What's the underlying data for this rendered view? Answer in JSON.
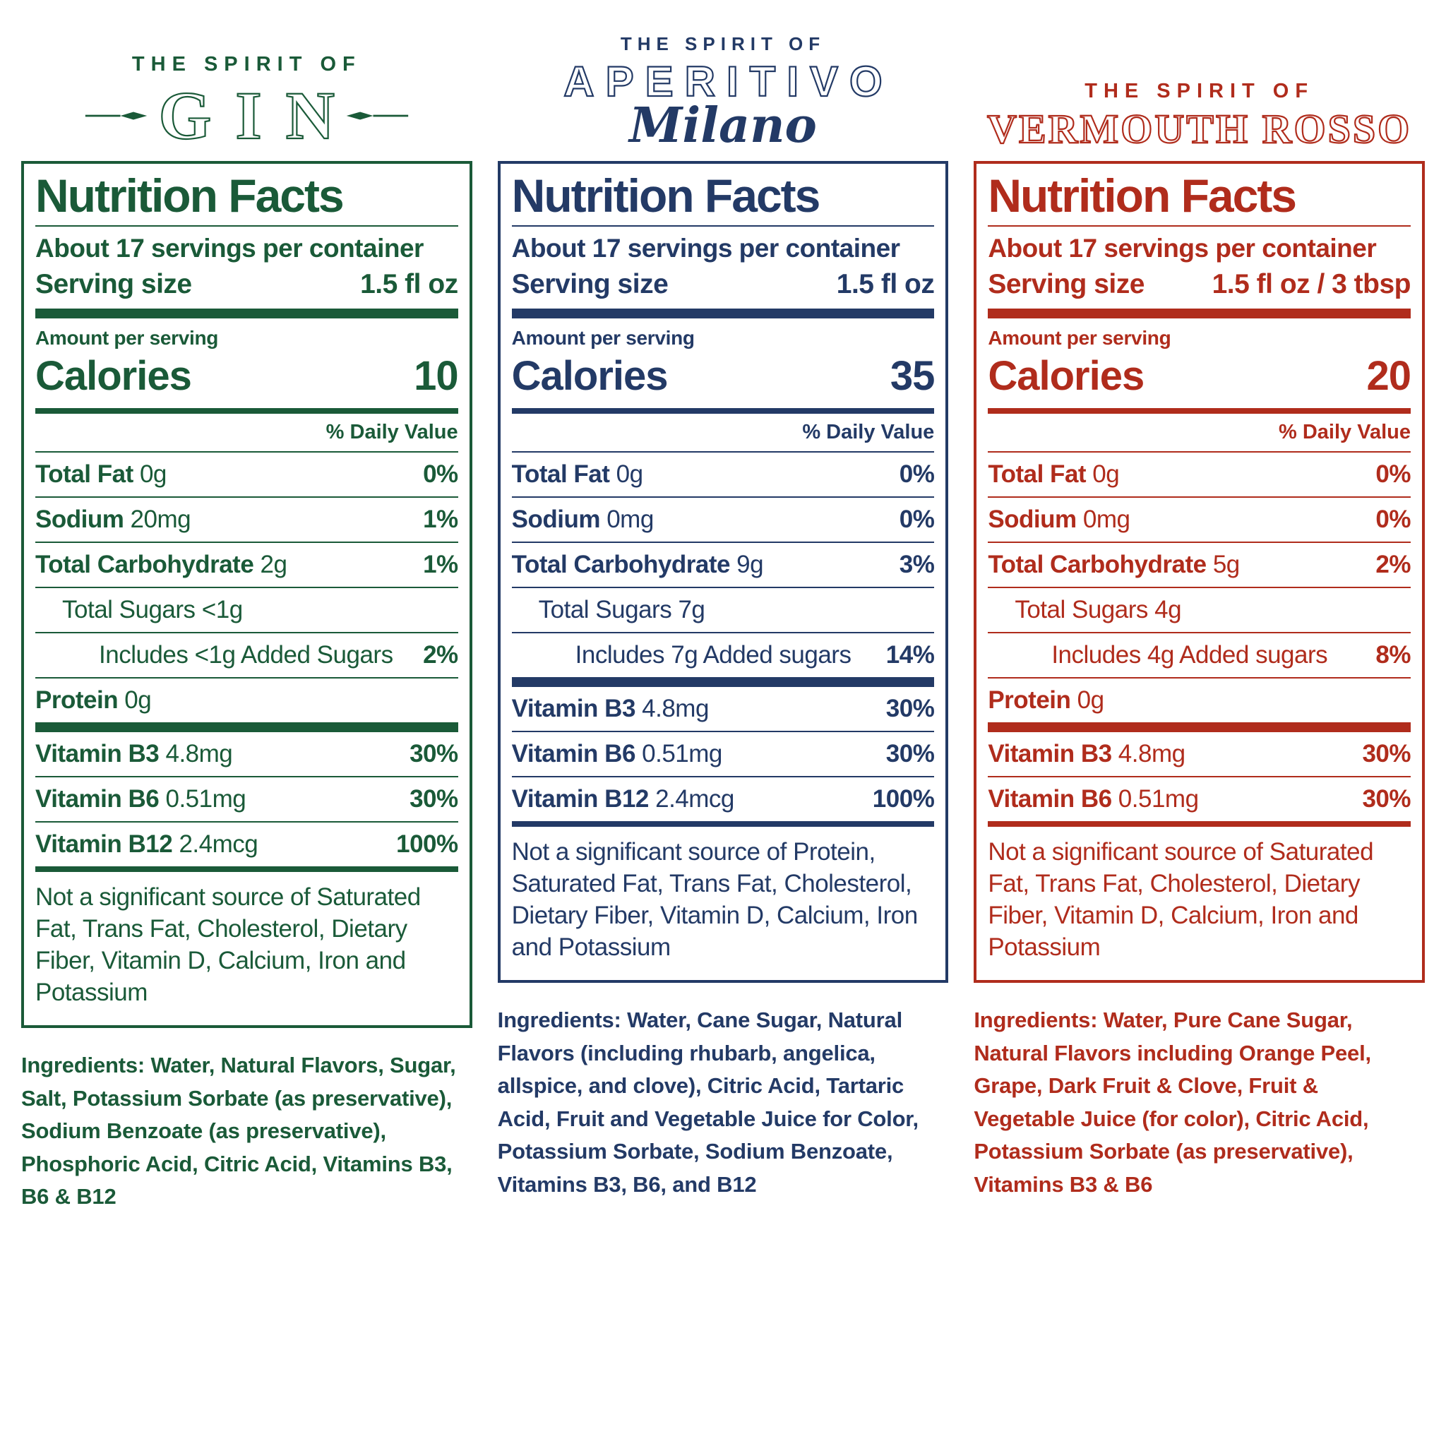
{
  "page": {
    "background": "#ffffff"
  },
  "labels": [
    {
      "id": "gin",
      "color": "#1a5a38",
      "header": {
        "eyebrow": "THE SPIRIT OF",
        "title": "GIN",
        "subtitle": ""
      },
      "facts": {
        "title": "Nutrition Facts",
        "servings_per_container": "About 17 servings per container",
        "serving_size_label": "Serving size",
        "serving_size_value": "1.5 fl oz",
        "amount_per_serving": "Amount per serving",
        "calories_label": "Calories",
        "calories_value": "10",
        "daily_value_header": "% Daily Value",
        "rows": [
          {
            "name": "Total Fat",
            "amount": "0g",
            "dv": "0%",
            "bold": true
          },
          {
            "name": "Sodium",
            "amount": "20mg",
            "dv": "1%",
            "bold": true
          },
          {
            "name": "Total Carbohydrate",
            "amount": "2g",
            "dv": "1%",
            "bold": true
          },
          {
            "name": "Total Sugars",
            "amount": "<1g",
            "indent": 1
          },
          {
            "name": "Includes <1g Added Sugars",
            "dv": "2%",
            "indent": 2
          },
          {
            "name": "Protein",
            "amount": "0g",
            "bold": true
          },
          {
            "divider": "thick"
          },
          {
            "name": "Vitamin B3",
            "amount": "4.8mg",
            "dv": "30%",
            "bold": true
          },
          {
            "name": "Vitamin B6",
            "amount": "0.51mg",
            "dv": "30%",
            "bold": true
          },
          {
            "name": "Vitamin B12",
            "amount": "2.4mcg",
            "dv": "100%",
            "bold": true
          },
          {
            "divider": "medium"
          }
        ],
        "footnote": "Not a significant source of Saturated Fat, Trans Fat, Cholesterol, Dietary Fiber, Vitamin D, Calcium, Iron and Potassium"
      },
      "ingredients_label": "Ingredients:",
      "ingredients_text": "Water, Natural Flavors, Sugar, Salt, Potassium Sorbate (as preservative), Sodium Benzoate (as preservative), Phosphoric Acid, Citric Acid, Vitamins B3, B6 & B12"
    },
    {
      "id": "aperitivo",
      "color": "#233a66",
      "header": {
        "eyebrow": "THE SPIRIT OF",
        "title": "APERITIVO",
        "subtitle": "Milano"
      },
      "facts": {
        "title": "Nutrition Facts",
        "servings_per_container": "About 17 servings per container",
        "serving_size_label": "Serving size",
        "serving_size_value": "1.5 fl oz",
        "amount_per_serving": "Amount per serving",
        "calories_label": "Calories",
        "calories_value": "35",
        "daily_value_header": "% Daily Value",
        "rows": [
          {
            "name": "Total Fat",
            "amount": "0g",
            "dv": "0%",
            "bold": true
          },
          {
            "name": "Sodium",
            "amount": "0mg",
            "dv": "0%",
            "bold": true
          },
          {
            "name": "Total Carbohydrate",
            "amount": "9g",
            "dv": "3%",
            "bold": true
          },
          {
            "name": "Total Sugars",
            "amount": "7g",
            "indent": 1
          },
          {
            "name": "Includes 7g Added sugars",
            "dv": "14%",
            "indent": 2
          },
          {
            "divider": "thick"
          },
          {
            "name": "Vitamin B3",
            "amount": "4.8mg",
            "dv": "30%",
            "bold": true
          },
          {
            "name": "Vitamin B6",
            "amount": "0.51mg",
            "dv": "30%",
            "bold": true
          },
          {
            "name": "Vitamin B12",
            "amount": "2.4mcg",
            "dv": "100%",
            "bold": true
          },
          {
            "divider": "medium"
          }
        ],
        "footnote": "Not a significant source of Protein, Saturated Fat, Trans Fat, Cholesterol, Dietary Fiber, Vitamin D, Calcium, Iron and Potassium"
      },
      "ingredients_label": "Ingredients:",
      "ingredients_text": "Water, Cane Sugar, Natural Flavors (including rhubarb, angelica, allspice, and clove), Citric Acid, Tartaric Acid, Fruit and Vegetable Juice for Color,  Potassium Sorbate, Sodium Benzoate, Vitamins B3, B6, and B12"
    },
    {
      "id": "vermouth-rosso",
      "color": "#b02c1c",
      "header": {
        "eyebrow": "THE SPIRIT OF",
        "title": "VERMOUTH ROSSO",
        "subtitle": ""
      },
      "facts": {
        "title": "Nutrition Facts",
        "servings_per_container": "About 17 servings per container",
        "serving_size_label": "Serving size",
        "serving_size_value": "1.5 fl oz / 3 tbsp",
        "amount_per_serving": "Amount per serving",
        "calories_label": "Calories",
        "calories_value": "20",
        "daily_value_header": "% Daily Value",
        "rows": [
          {
            "name": "Total Fat",
            "amount": "0g",
            "dv": "0%",
            "bold": true
          },
          {
            "name": "Sodium",
            "amount": "0mg",
            "dv": "0%",
            "bold": true
          },
          {
            "name": "Total Carbohydrate",
            "amount": "5g",
            "dv": "2%",
            "bold": true
          },
          {
            "name": "Total Sugars",
            "amount": "4g",
            "indent": 1
          },
          {
            "name": "Includes 4g Added sugars",
            "dv": "8%",
            "indent": 2
          },
          {
            "name": "Protein",
            "amount": "0g",
            "bold": true
          },
          {
            "divider": "thick"
          },
          {
            "name": "Vitamin B3",
            "amount": "4.8mg",
            "dv": "30%",
            "bold": true
          },
          {
            "name": "Vitamin B6",
            "amount": "0.51mg",
            "dv": "30%",
            "bold": true
          },
          {
            "divider": "medium"
          }
        ],
        "footnote": "Not a significant source of Saturated Fat, Trans Fat, Cholesterol, Dietary Fiber, Vitamin D, Calcium, Iron and Potassium"
      },
      "ingredients_label": "Ingredients:",
      "ingredients_text": "Water, Pure Cane Sugar, Natural Flavors including Orange Peel, Grape, Dark Fruit & Clove, Fruit & Vegetable Juice (for color), Citric Acid, Potassium Sorbate (as preservative), Vitamins B3 & B6"
    }
  ]
}
